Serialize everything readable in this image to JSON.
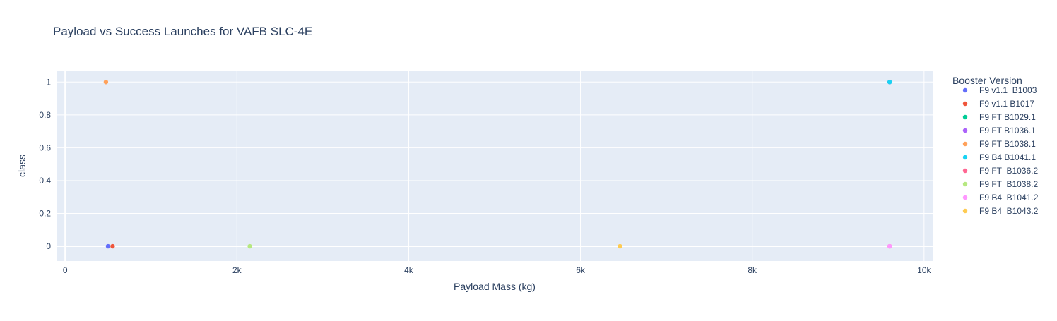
{
  "chart_data": {
    "type": "scatter",
    "title": "Payload vs Success Launches for VAFB SLC-4E",
    "xlabel": "Payload Mass (kg)",
    "ylabel": "class",
    "xlim": [
      -100,
      10100
    ],
    "ylim": [
      -0.09,
      1.07
    ],
    "x_ticks": [
      {
        "value": 0,
        "label": "0"
      },
      {
        "value": 2000,
        "label": "2k"
      },
      {
        "value": 4000,
        "label": "4k"
      },
      {
        "value": 6000,
        "label": "6k"
      },
      {
        "value": 8000,
        "label": "8k"
      },
      {
        "value": 10000,
        "label": "10k"
      }
    ],
    "y_ticks": [
      {
        "value": 0,
        "label": "0"
      },
      {
        "value": 0.2,
        "label": "0.2"
      },
      {
        "value": 0.4,
        "label": "0.4"
      },
      {
        "value": 0.6,
        "label": "0.6"
      },
      {
        "value": 0.8,
        "label": "0.8"
      },
      {
        "value": 1,
        "label": "1"
      }
    ],
    "grid": true,
    "legend": {
      "title": "Booster Version",
      "position": "right"
    },
    "series": [
      {
        "name": "F9 v1.1  B1003",
        "color": "#636efa",
        "points": [
          {
            "x": 500,
            "y": 0
          }
        ]
      },
      {
        "name": "F9 v1.1 B1017",
        "color": "#ef553b",
        "points": [
          {
            "x": 553,
            "y": 0
          }
        ]
      },
      {
        "name": "F9 FT B1029.1",
        "color": "#00cc96",
        "points": [
          {
            "x": 9600,
            "y": 1
          }
        ]
      },
      {
        "name": "F9 FT B1036.1",
        "color": "#ab63fa",
        "points": [
          {
            "x": 9600,
            "y": 1
          }
        ]
      },
      {
        "name": "F9 FT B1038.1",
        "color": "#ffa15a",
        "points": [
          {
            "x": 475,
            "y": 1
          }
        ]
      },
      {
        "name": "F9 B4 B1041.1",
        "color": "#19d3f3",
        "points": [
          {
            "x": 9600,
            "y": 1
          }
        ]
      },
      {
        "name": "F9 FT  B1036.2",
        "color": "#ff6692",
        "points": [
          {
            "x": 9600,
            "y": 0
          }
        ]
      },
      {
        "name": "F9 FT  B1038.2",
        "color": "#b6e880",
        "points": [
          {
            "x": 2150,
            "y": 0
          }
        ]
      },
      {
        "name": "F9 B4  B1041.2",
        "color": "#ff97ff",
        "points": [
          {
            "x": 9600,
            "y": 0
          }
        ]
      },
      {
        "name": "F9 B4  B1043.2",
        "color": "#fecb52",
        "points": [
          {
            "x": 6460,
            "y": 0
          }
        ]
      }
    ]
  }
}
